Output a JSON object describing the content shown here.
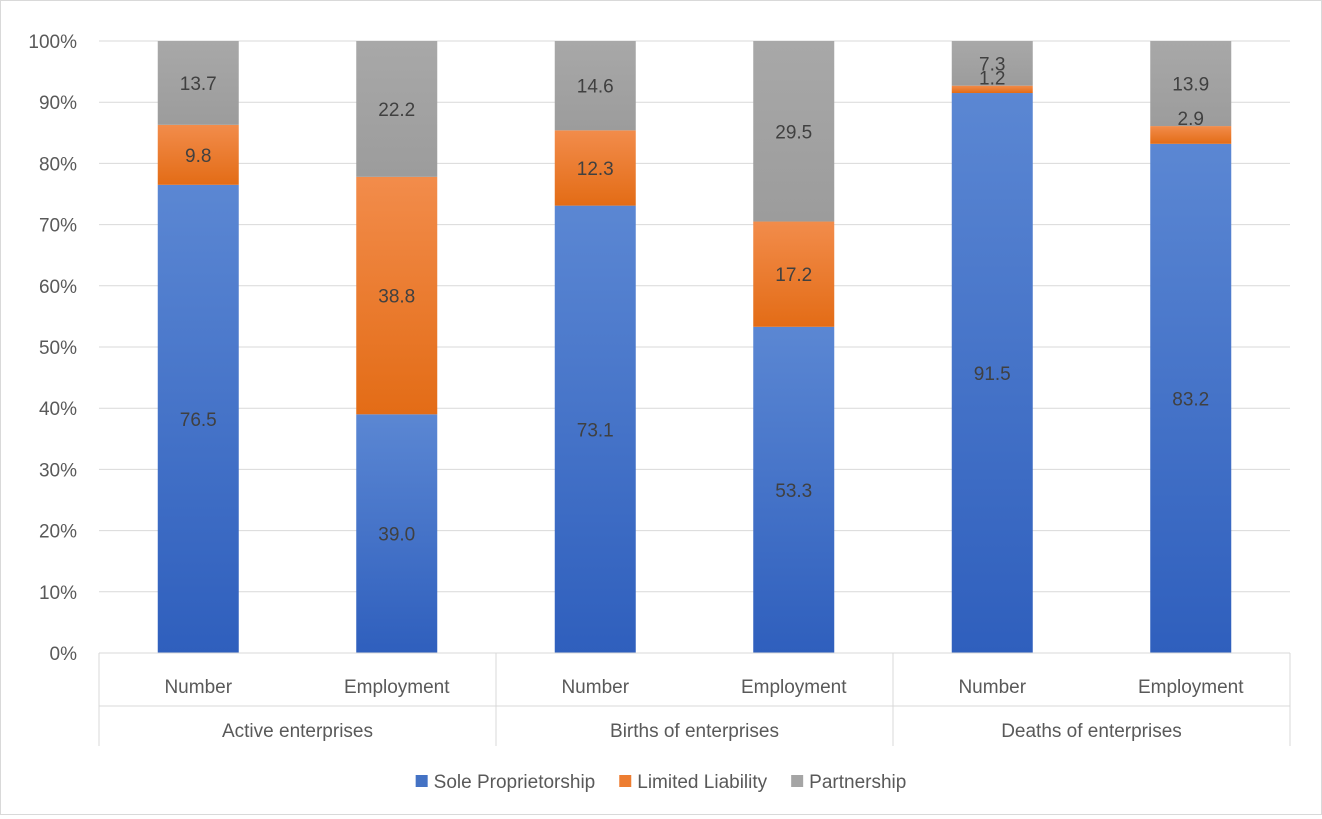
{
  "chart_data": {
    "type": "bar",
    "stacked": "percent",
    "group_labels": [
      "Active enterprises",
      "Births of enterprises",
      "Deaths of enterprises"
    ],
    "categories": [
      "Number",
      "Employment",
      "Number",
      "Employment",
      "Number",
      "Employment"
    ],
    "series": [
      {
        "name": "Sole Proprietorship",
        "color": "#4472c4",
        "values": [
          76.5,
          39.0,
          73.1,
          53.3,
          91.5,
          83.2
        ]
      },
      {
        "name": "Limited Liability",
        "color": "#ed7d31",
        "values": [
          9.8,
          38.8,
          12.3,
          17.2,
          1.2,
          2.9
        ]
      },
      {
        "name": "Partnership",
        "color": "#a5a5a5",
        "values": [
          13.7,
          22.2,
          14.6,
          29.5,
          7.3,
          13.9
        ]
      }
    ],
    "y_ticks": [
      "0%",
      "10%",
      "20%",
      "30%",
      "40%",
      "50%",
      "60%",
      "70%",
      "80%",
      "90%",
      "100%"
    ],
    "ylim": [
      0,
      100
    ],
    "title": "",
    "xlabel": "",
    "ylabel": "",
    "grid": true,
    "legend_position": "bottom"
  }
}
